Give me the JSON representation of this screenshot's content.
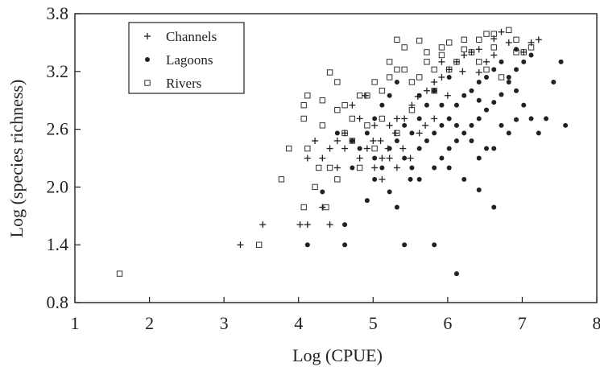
{
  "chart_data": {
    "type": "scatter",
    "xlabel": "Log (CPUE)",
    "ylabel": "Log (species richness)",
    "xlim": [
      1,
      8
    ],
    "ylim": [
      0.8,
      3.8
    ],
    "x_ticks": [
      "1",
      "2",
      "3",
      "4",
      "5",
      "6",
      "7",
      "8"
    ],
    "y_ticks": [
      "0.8",
      "1.4",
      "2.0",
      "2.6",
      "3.2",
      "3.8"
    ],
    "grid": false,
    "legend_position": "top-left",
    "legend": [
      {
        "label": "Channels",
        "marker": "plus"
      },
      {
        "label": "Lagoons",
        "marker": "filled-circle"
      },
      {
        "label": "Rivers",
        "marker": "open-square"
      }
    ],
    "series": [
      {
        "name": "Channels",
        "marker": "plus",
        "points": [
          [
            3.22,
            1.4
          ],
          [
            3.52,
            1.61
          ],
          [
            4.02,
            1.61
          ],
          [
            4.12,
            1.61
          ],
          [
            4.42,
            1.61
          ],
          [
            4.32,
            1.79
          ],
          [
            4.12,
            2.3
          ],
          [
            4.32,
            2.3
          ],
          [
            4.42,
            2.4
          ],
          [
            4.62,
            2.4
          ],
          [
            4.22,
            2.48
          ],
          [
            4.52,
            2.48
          ],
          [
            4.62,
            2.56
          ],
          [
            4.82,
            2.71
          ],
          [
            4.72,
            2.85
          ],
          [
            4.9,
            2.95
          ],
          [
            5.0,
            2.48
          ],
          [
            5.1,
            2.48
          ],
          [
            5.2,
            2.4
          ],
          [
            5.22,
            2.3
          ],
          [
            5.32,
            2.2
          ],
          [
            5.4,
            2.4
          ],
          [
            5.5,
            2.3
          ],
          [
            5.62,
            2.56
          ],
          [
            5.7,
            2.64
          ],
          [
            5.82,
            2.71
          ],
          [
            5.02,
            2.2
          ],
          [
            5.12,
            2.08
          ],
          [
            5.3,
            2.56
          ],
          [
            5.42,
            2.71
          ],
          [
            5.52,
            2.85
          ],
          [
            5.6,
            2.94
          ],
          [
            5.72,
            3.0
          ],
          [
            5.82,
            3.09
          ],
          [
            5.92,
            3.14
          ],
          [
            6.02,
            3.22
          ],
          [
            6.12,
            3.3
          ],
          [
            6.22,
            3.37
          ],
          [
            6.32,
            3.4
          ],
          [
            6.42,
            3.43
          ],
          [
            6.52,
            3.3
          ],
          [
            6.62,
            3.37
          ],
          [
            6.72,
            3.61
          ],
          [
            6.82,
            3.5
          ],
          [
            7.02,
            3.4
          ],
          [
            7.12,
            3.5
          ],
          [
            7.22,
            3.53
          ],
          [
            5.02,
            2.64
          ],
          [
            4.92,
            2.4
          ],
          [
            5.22,
            2.64
          ],
          [
            4.82,
            2.3
          ],
          [
            5.12,
            2.3
          ],
          [
            6.0,
            2.95
          ],
          [
            6.2,
            3.2
          ],
          [
            5.92,
            3.3
          ],
          [
            6.62,
            3.54
          ],
          [
            6.42,
            3.19
          ],
          [
            5.32,
            2.71
          ],
          [
            4.52,
            2.2
          ]
        ]
      },
      {
        "name": "Lagoons",
        "marker": "filled-circle",
        "points": [
          [
            4.12,
            1.4
          ],
          [
            4.32,
            1.95
          ],
          [
            4.62,
            1.4
          ],
          [
            4.62,
            1.61
          ],
          [
            4.92,
            1.86
          ],
          [
            5.02,
            2.08
          ],
          [
            5.12,
            2.2
          ],
          [
            5.22,
            1.95
          ],
          [
            5.32,
            1.79
          ],
          [
            5.42,
            1.4
          ],
          [
            5.62,
            2.08
          ],
          [
            5.82,
            1.4
          ],
          [
            6.12,
            1.1
          ],
          [
            6.42,
            1.97
          ],
          [
            6.62,
            1.79
          ],
          [
            4.72,
            2.2
          ],
          [
            4.82,
            2.4
          ],
          [
            4.92,
            2.56
          ],
          [
            5.02,
            2.71
          ],
          [
            5.12,
            2.85
          ],
          [
            5.22,
            2.95
          ],
          [
            5.32,
            3.09
          ],
          [
            5.42,
            2.3
          ],
          [
            5.52,
            2.2
          ],
          [
            5.62,
            2.4
          ],
          [
            5.72,
            2.48
          ],
          [
            5.82,
            2.56
          ],
          [
            5.92,
            2.64
          ],
          [
            6.02,
            2.71
          ],
          [
            6.12,
            2.85
          ],
          [
            6.22,
            2.95
          ],
          [
            6.32,
            3.0
          ],
          [
            6.42,
            3.09
          ],
          [
            6.52,
            3.14
          ],
          [
            6.62,
            3.22
          ],
          [
            6.72,
            3.3
          ],
          [
            6.82,
            3.09
          ],
          [
            6.92,
            3.0
          ],
          [
            7.02,
            2.85
          ],
          [
            7.12,
            2.71
          ],
          [
            7.22,
            2.56
          ],
          [
            7.32,
            2.71
          ],
          [
            7.42,
            3.09
          ],
          [
            7.52,
            3.3
          ],
          [
            7.58,
            2.64
          ],
          [
            5.52,
            2.56
          ],
          [
            5.62,
            2.71
          ],
          [
            5.72,
            2.85
          ],
          [
            5.82,
            3.0
          ],
          [
            5.92,
            2.3
          ],
          [
            6.02,
            2.4
          ],
          [
            6.12,
            2.48
          ],
          [
            6.22,
            2.56
          ],
          [
            6.32,
            2.64
          ],
          [
            6.42,
            2.71
          ],
          [
            6.52,
            2.8
          ],
          [
            6.62,
            2.88
          ],
          [
            6.72,
            2.96
          ],
          [
            6.82,
            3.14
          ],
          [
            6.92,
            3.22
          ],
          [
            7.02,
            3.3
          ],
          [
            6.02,
            2.2
          ],
          [
            6.22,
            2.08
          ],
          [
            6.42,
            2.3
          ],
          [
            6.62,
            2.4
          ],
          [
            6.82,
            2.56
          ],
          [
            5.42,
            2.64
          ],
          [
            5.92,
            2.85
          ],
          [
            6.32,
            2.48
          ],
          [
            6.12,
            2.64
          ],
          [
            6.72,
            2.64
          ],
          [
            6.52,
            2.4
          ],
          [
            7.12,
            3.37
          ],
          [
            6.92,
            3.43
          ],
          [
            5.02,
            2.3
          ],
          [
            5.22,
            2.4
          ],
          [
            4.52,
            2.56
          ],
          [
            4.72,
            2.48
          ],
          [
            5.32,
            2.48
          ],
          [
            5.62,
            2.95
          ],
          [
            6.02,
            3.14
          ],
          [
            6.42,
            2.9
          ],
          [
            6.92,
            2.7
          ],
          [
            5.82,
            2.2
          ],
          [
            5.5,
            2.08
          ]
        ]
      },
      {
        "name": "Rivers",
        "marker": "open-square",
        "points": [
          [
            1.6,
            1.1
          ],
          [
            3.47,
            1.4
          ],
          [
            3.77,
            2.08
          ],
          [
            4.07,
            1.79
          ],
          [
            4.37,
            1.79
          ],
          [
            4.52,
            2.08
          ],
          [
            4.12,
            2.4
          ],
          [
            4.27,
            2.2
          ],
          [
            4.42,
            2.2
          ],
          [
            4.07,
            2.71
          ],
          [
            4.07,
            2.85
          ],
          [
            4.12,
            2.95
          ],
          [
            4.32,
            2.9
          ],
          [
            4.52,
            2.8
          ],
          [
            4.62,
            2.85
          ],
          [
            4.72,
            2.71
          ],
          [
            4.72,
            2.48
          ],
          [
            4.92,
            2.64
          ],
          [
            4.92,
            2.95
          ],
          [
            5.02,
            3.09
          ],
          [
            5.12,
            3.0
          ],
          [
            5.22,
            3.14
          ],
          [
            5.32,
            3.22
          ],
          [
            5.22,
            3.3
          ],
          [
            5.32,
            3.53
          ],
          [
            5.42,
            3.45
          ],
          [
            5.62,
            3.52
          ],
          [
            5.72,
            3.4
          ],
          [
            5.92,
            3.45
          ],
          [
            6.02,
            3.5
          ],
          [
            6.22,
            3.53
          ],
          [
            6.42,
            3.53
          ],
          [
            6.52,
            3.59
          ],
          [
            6.62,
            3.59
          ],
          [
            6.82,
            3.63
          ],
          [
            6.92,
            3.4
          ],
          [
            7.02,
            3.4
          ],
          [
            7.12,
            3.45
          ],
          [
            5.52,
            3.09
          ],
          [
            5.62,
            3.14
          ],
          [
            5.82,
            3.22
          ],
          [
            6.12,
            3.3
          ],
          [
            6.32,
            3.4
          ],
          [
            6.42,
            3.3
          ],
          [
            6.52,
            3.22
          ],
          [
            6.72,
            3.14
          ],
          [
            5.02,
            2.4
          ],
          [
            4.82,
            2.2
          ],
          [
            5.32,
            2.56
          ],
          [
            4.42,
            3.19
          ],
          [
            4.52,
            3.09
          ],
          [
            4.62,
            2.56
          ],
          [
            4.82,
            2.95
          ],
          [
            5.42,
            3.22
          ],
          [
            5.72,
            3.3
          ],
          [
            5.92,
            3.37
          ],
          [
            6.22,
            3.43
          ],
          [
            6.02,
            3.22
          ],
          [
            4.22,
            2.0
          ],
          [
            5.12,
            2.71
          ],
          [
            5.52,
            2.8
          ],
          [
            5.82,
            3.0
          ],
          [
            4.32,
            2.64
          ],
          [
            3.87,
            2.4
          ],
          [
            6.92,
            3.53
          ],
          [
            6.62,
            3.45
          ]
        ]
      }
    ]
  }
}
